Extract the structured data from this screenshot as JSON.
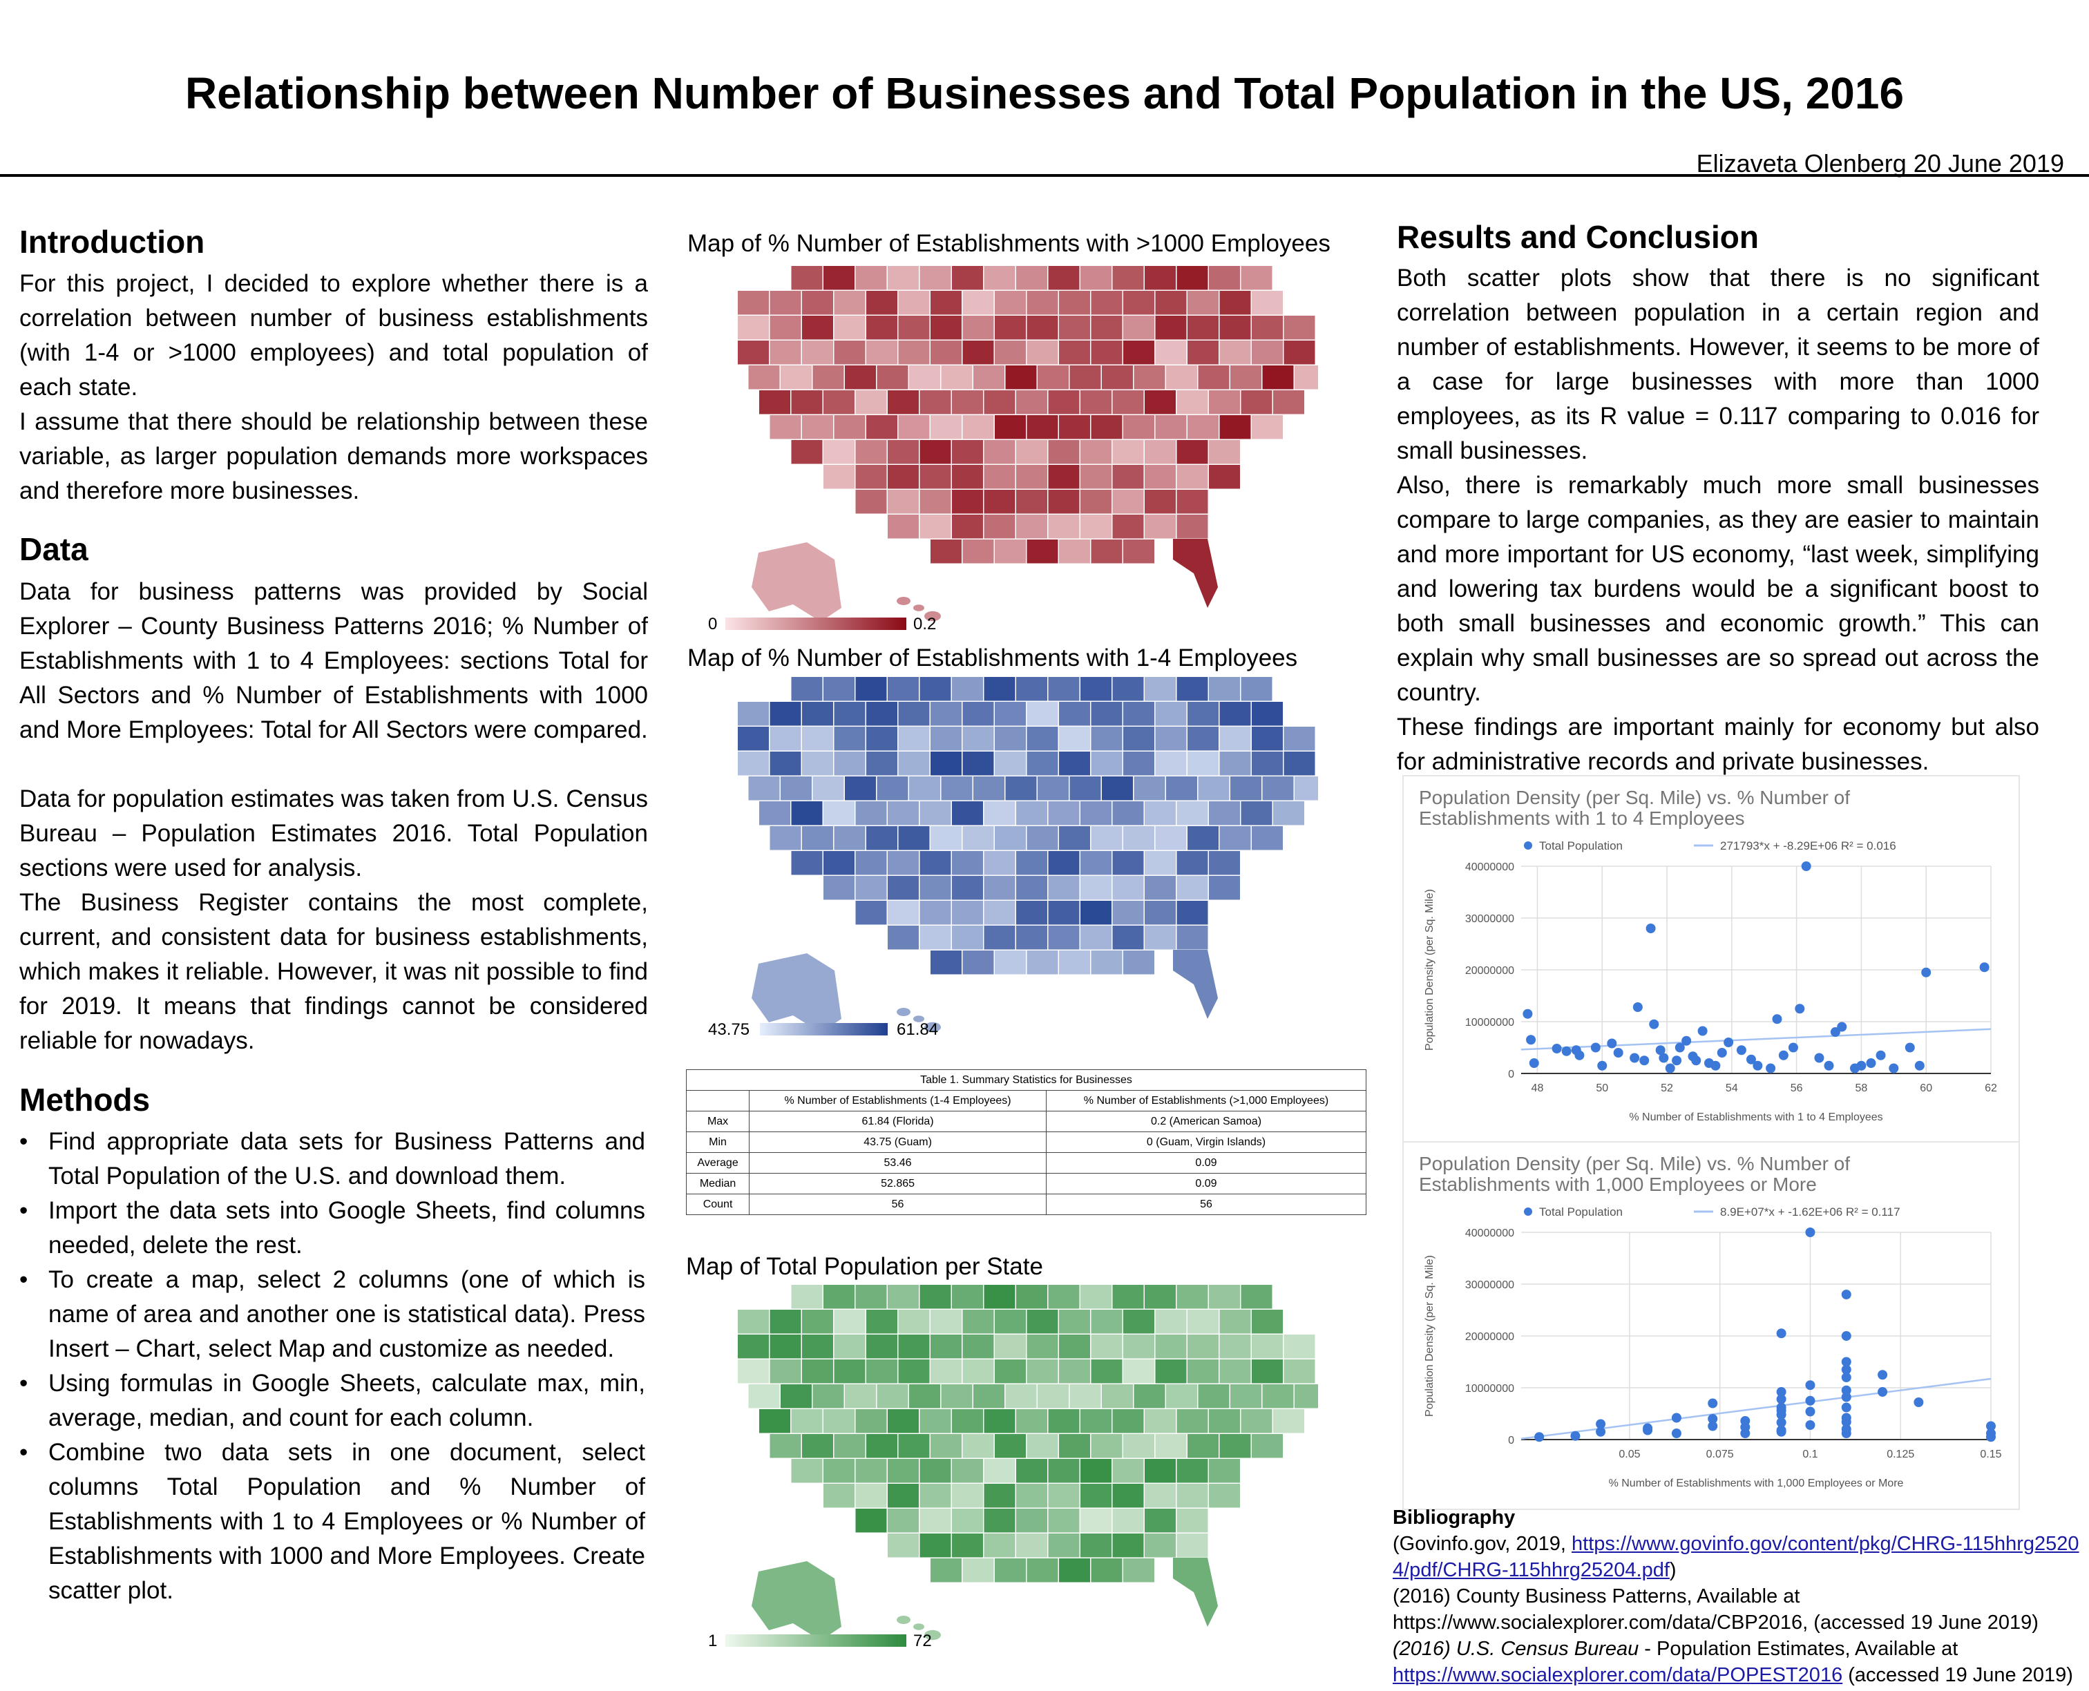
{
  "header": {
    "title": "Relationship between Number of Businesses and Total Population in the US, 2016",
    "byline": "Elizaveta Olenberg   20 June 2019"
  },
  "intro": {
    "heading": "Introduction",
    "p1": "For this project, I decided to explore whether there is a correlation between number of business establishments  (with 1-4 or >1000 employees) and total population of each state.",
    "p2": "I assume that there should be relationship between these variable, as larger population demands more workspaces and therefore more businesses."
  },
  "data_section": {
    "heading": "Data",
    "p1": "Data for business patterns was provided by Social Explorer – County Business Patterns 2016; % Number of Establishments with 1 to 4 Employees: sections Total for All Sectors and % Number of Establishments with 1000 and More Employees: Total for All Sectors were compared.",
    "p2": "Data for population estimates was taken from  U.S. Census Bureau – Population Estimates 2016. Total Population sections were used for analysis.",
    "p3": "The Business Register contains the most complete, current, and consistent data for business establishments, which makes it reliable. However, it was nit possible to find for 2019. It means that findings cannot be considered reliable for nowadays."
  },
  "methods": {
    "heading": "Methods",
    "items": [
      "Find appropriate data sets for Business Patterns and Total Population of the U.S. and download them.",
      "Import the data sets into Google Sheets, find columns needed, delete the rest.",
      "To create a map, select 2 columns (one of which is name of area and another one is statistical data). Press Insert – Chart, select Map and customize as needed.",
      "Using formulas in Google Sheets, calculate max, min, average, median, and count for each column.",
      "Combine two data sets in one document, select columns Total Population and % Number of Establishments with 1 to 4 Employees or % Number of Establishments with 1000 and More Employees. Create scatter plot."
    ]
  },
  "maps": {
    "red": {
      "title": "Map of % Number of Establishments with >1000 Employees",
      "min": "0",
      "max": "0.2",
      "color_low": "#fbe3e5",
      "color_high": "#8b0a16"
    },
    "blue": {
      "title": "Map of % Number of Establishments with 1-4 Employees",
      "min": "43.75",
      "max": "61.84",
      "color_low": "#e6eefc",
      "color_high": "#1f3f8f"
    },
    "green": {
      "title": "Map of Total Population per State",
      "min": "1",
      "max": "72",
      "color_low": "#eef7ec",
      "color_high": "#2e8b3e"
    }
  },
  "table": {
    "caption": "Table 1. Summary Statistics for Businesses",
    "col1": "% Number of Establishments (1-4 Employees)",
    "col2": "% Number of Establishments (>1,000 Employees)",
    "rows": [
      {
        "label": "Max",
        "a": "61.84 (Florida)",
        "b": "0.2 (American Samoa)"
      },
      {
        "label": "Min",
        "a": "43.75 (Guam)",
        "b": "0 (Guam, Virgin Islands)"
      },
      {
        "label": "Average",
        "a": "53.46",
        "b": "0.09"
      },
      {
        "label": "Median",
        "a": "52.865",
        "b": "0.09"
      },
      {
        "label": "Count",
        "a": "56",
        "b": "56"
      }
    ]
  },
  "results": {
    "heading": "Results and Conclusion",
    "p1": "Both scatter plots show that there is no significant correlation between population in a certain region and number of establishments. However, it seems to be more of a case for large businesses with more than 1000 employees, as its R value = 0.117 comparing to 0.016 for small businesses.",
    "p2": "Also, there is remarkably much more small businesses compare to large companies, as they are easier to maintain and more important for US economy, “last week, simplifying and lowering tax burdens would be a significant boost to both small businesses and economic growth.” This can explain why small businesses are so spread out across the country.",
    "p3": "These findings are important mainly for economy but also for administrative records and private businesses."
  },
  "chart_data": [
    {
      "type": "scatter",
      "title": "Population Density (per Sq. Mile) vs. % Number of Establishments with 1 to 4 Employees",
      "title_line1": "Population Density (per Sq. Mile) vs. % Number of",
      "title_line2": "Establishments with 1 to 4 Employees",
      "xlabel": "% Number of Establishments with 1 to 4 Employees",
      "ylabel": "Population Density (per Sq. Mile)",
      "legend_series": "Total Population",
      "legend_trend": "271793*x + -8.29E+06 R² = 0.016",
      "xlim": [
        47.5,
        62
      ],
      "ylim": [
        0,
        40000000
      ],
      "xticks": [
        48,
        50,
        52,
        54,
        56,
        58,
        60,
        62
      ],
      "yticks": [
        0,
        10000000,
        20000000,
        30000000,
        40000000
      ],
      "trend": {
        "slope": 271793,
        "intercept": -8290000
      },
      "points": [
        [
          47.7,
          11500000
        ],
        [
          47.8,
          6500000
        ],
        [
          47.9,
          2000000
        ],
        [
          48.6,
          4800000
        ],
        [
          48.9,
          4300000
        ],
        [
          49.2,
          4500000
        ],
        [
          49.3,
          3500000
        ],
        [
          49.8,
          5000000
        ],
        [
          50.3,
          5800000
        ],
        [
          50.0,
          1500000
        ],
        [
          50.5,
          4000000
        ],
        [
          51.0,
          3000000
        ],
        [
          51.1,
          12800000
        ],
        [
          51.3,
          2500000
        ],
        [
          51.5,
          28000000
        ],
        [
          51.6,
          9500000
        ],
        [
          51.8,
          4500000
        ],
        [
          51.9,
          3000000
        ],
        [
          52.1,
          1000000
        ],
        [
          52.3,
          2500000
        ],
        [
          52.4,
          5000000
        ],
        [
          52.6,
          6300000
        ],
        [
          52.8,
          3300000
        ],
        [
          52.9,
          2500000
        ],
        [
          53.1,
          8200000
        ],
        [
          53.3,
          2000000
        ],
        [
          53.5,
          1500000
        ],
        [
          53.7,
          4000000
        ],
        [
          53.9,
          6000000
        ],
        [
          54.3,
          4500000
        ],
        [
          54.6,
          2700000
        ],
        [
          54.8,
          1500000
        ],
        [
          55.2,
          1000000
        ],
        [
          55.4,
          10500000
        ],
        [
          55.6,
          3500000
        ],
        [
          55.9,
          5000000
        ],
        [
          56.1,
          12500000
        ],
        [
          56.3,
          40000000
        ],
        [
          56.7,
          3000000
        ],
        [
          57.0,
          1500000
        ],
        [
          57.2,
          8000000
        ],
        [
          57.4,
          9000000
        ],
        [
          57.8,
          1000000
        ],
        [
          58.0,
          1500000
        ],
        [
          58.3,
          2000000
        ],
        [
          58.6,
          3500000
        ],
        [
          59.0,
          1000000
        ],
        [
          59.5,
          5000000
        ],
        [
          59.8,
          1500000
        ],
        [
          60.0,
          19500000
        ],
        [
          61.8,
          20500000
        ]
      ]
    },
    {
      "type": "scatter",
      "title": "Population Density (per Sq. Mile) vs. % Number of Establishments with 1,000 Employees or More",
      "title_line1": "Population Density (per Sq. Mile) vs. % Number of",
      "title_line2": "Establishments with 1,000 Employees or More",
      "xlabel": "% Number of Establishments with 1,000 Employees or More",
      "ylabel": "Population Density (per Sq. Mile)",
      "legend_series": "Total Population",
      "legend_trend": "8.9E+07*x + -1.62E+06 R² = 0.117",
      "xlim": [
        0.02,
        0.15
      ],
      "ylim": [
        0,
        40000000
      ],
      "xticks": [
        0.05,
        0.075,
        0.1,
        0.125,
        0.15
      ],
      "ytick_labels": [
        "0",
        "10000000",
        "20000000",
        "30000000",
        "40000000"
      ],
      "yticks": [
        0,
        10000000,
        20000000,
        30000000,
        40000000
      ],
      "trend": {
        "slope": 89000000,
        "intercept": -1620000
      },
      "points": [
        [
          0.025,
          500000
        ],
        [
          0.035,
          700000
        ],
        [
          0.042,
          1500000
        ],
        [
          0.042,
          3000000
        ],
        [
          0.055,
          1800000
        ],
        [
          0.055,
          2200000
        ],
        [
          0.063,
          1200000
        ],
        [
          0.063,
          4200000
        ],
        [
          0.073,
          2600000
        ],
        [
          0.073,
          4000000
        ],
        [
          0.073,
          7000000
        ],
        [
          0.082,
          1200000
        ],
        [
          0.082,
          2400000
        ],
        [
          0.082,
          3600000
        ],
        [
          0.092,
          1800000
        ],
        [
          0.092,
          3300000
        ],
        [
          0.092,
          4800000
        ],
        [
          0.092,
          5600000
        ],
        [
          0.092,
          20500000
        ],
        [
          0.092,
          9200000
        ],
        [
          0.092,
          7800000
        ],
        [
          0.092,
          6200000
        ],
        [
          0.092,
          1500000
        ],
        [
          0.1,
          2800000
        ],
        [
          0.1,
          5400000
        ],
        [
          0.1,
          10500000
        ],
        [
          0.1,
          40000000
        ],
        [
          0.1,
          7500000
        ],
        [
          0.11,
          4200000
        ],
        [
          0.11,
          2000000
        ],
        [
          0.11,
          6200000
        ],
        [
          0.11,
          9500000
        ],
        [
          0.11,
          12000000
        ],
        [
          0.11,
          13500000
        ],
        [
          0.11,
          15000000
        ],
        [
          0.11,
          8200000
        ],
        [
          0.11,
          28000000
        ],
        [
          0.11,
          20000000
        ],
        [
          0.11,
          3400000
        ],
        [
          0.11,
          1200000
        ],
        [
          0.12,
          12500000
        ],
        [
          0.12,
          9200000
        ],
        [
          0.13,
          7200000
        ],
        [
          0.15,
          2600000
        ],
        [
          0.15,
          500000
        ],
        [
          0.15,
          1200000
        ]
      ]
    }
  ],
  "bibliography": {
    "heading": "Bibliography",
    "line1_prefix": "(Govinfo.gov, 2019, ",
    "line1_link": "https://www.govinfo.gov/content/pkg/CHRG-115hhrg25204/pdf/CHRG-115hhrg25204.pdf",
    "line1_suffix": ")",
    "line2": "(2016) County Business Patterns, Available at",
    "line3": "https://www.socialexplorer.com/data/CBP2016, (accessed 19 June 2019)",
    "line4_italic": "(2016) U.S. Census Bureau",
    "line4_rest": " - Population Estimates, Available at",
    "line5_link": "https://www.socialexplorer.com/data/POPEST2016",
    "line5_suffix": "  (accessed 19 June 2019)"
  }
}
